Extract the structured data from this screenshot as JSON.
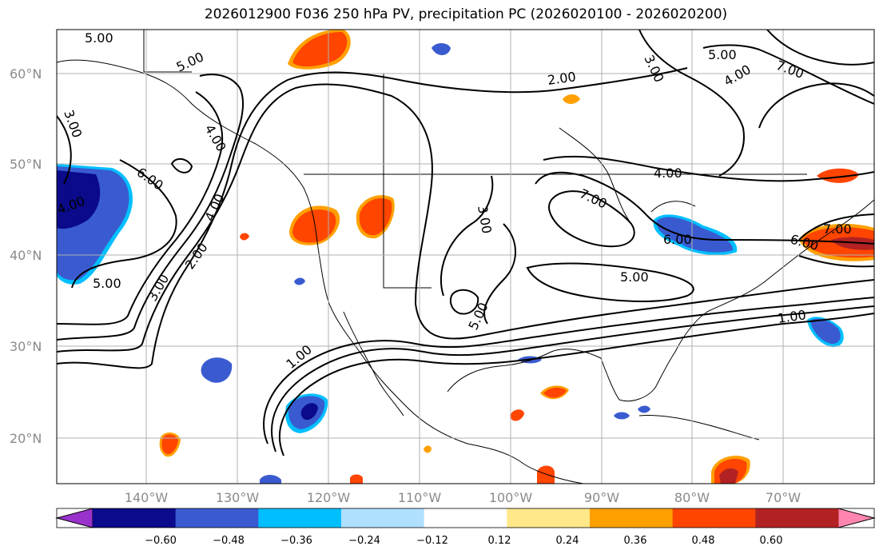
{
  "title": "2026012900 F036 250 hPa PV, precipitation PC (2026020100 - 2026020200)",
  "map": {
    "lat_ticks": [
      "60°N",
      "50°N",
      "40°N",
      "30°N",
      "20°N"
    ],
    "lon_ticks": [
      "140°W",
      "130°W",
      "120°W",
      "110°W",
      "100°W",
      "90°W",
      "80°W",
      "70°W"
    ],
    "contour_labels": [
      "5.00",
      "5.00",
      "4.00",
      "2.00",
      "3.00",
      "5.00",
      "4.00",
      "3.00",
      "6.00",
      "4.00",
      "2.00",
      "3.00",
      "1.00",
      "3.00",
      "4.00",
      "7.00",
      "5.00",
      "6.00",
      "7.00",
      "1.00",
      "4.00",
      "5.00",
      "7.00",
      "5.00",
      "6.00"
    ]
  },
  "colorbar": {
    "ticks": [
      "−0.60",
      "−0.48",
      "−0.36",
      "−0.24",
      "−0.12",
      "0.12",
      "0.24",
      "0.36",
      "0.48",
      "0.60"
    ],
    "colors": [
      "#9932cc",
      "#0a0a8a",
      "#3a5bd0",
      "#00bfff",
      "#b0e0ff",
      "#ffffff",
      "#ffe88a",
      "#ffa000",
      "#ff4500",
      "#b22222",
      "#ff85b0"
    ]
  }
}
